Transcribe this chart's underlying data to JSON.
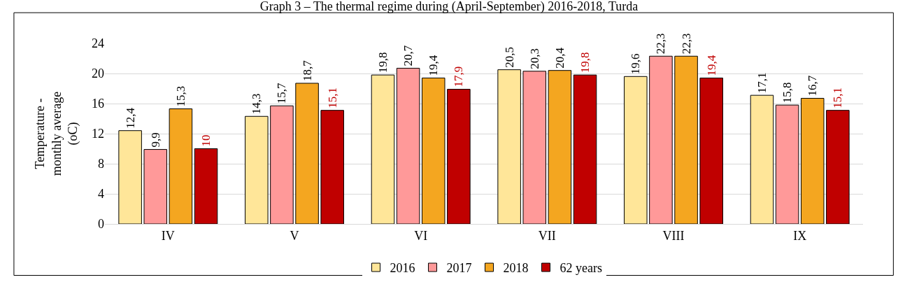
{
  "chart_data": {
    "type": "bar",
    "title": "Graph 3 – The thermal regime during (April-September) 2016-2018, Turda",
    "ylabel": "Temperature -\nmonthly average\n(oC)",
    "categories": [
      "IV",
      "V",
      "VI",
      "VII",
      "VIII",
      "IX"
    ],
    "series": [
      {
        "name": "2016",
        "color": "#ffe699",
        "values": [
          12.4,
          14.3,
          19.8,
          20.5,
          19.6,
          17.1
        ],
        "value_labels": [
          "12,4",
          "14,3",
          "19,8",
          "20,5",
          "19,6",
          "17,1"
        ]
      },
      {
        "name": "2017",
        "color": "#ff9999",
        "values": [
          9.9,
          15.7,
          20.7,
          20.3,
          22.3,
          15.8
        ],
        "value_labels": [
          "9,9",
          "15,7",
          "20,7",
          "20,3",
          "22,3",
          "15,8"
        ]
      },
      {
        "name": "2018",
        "color": "#f4a620",
        "values": [
          15.3,
          18.7,
          19.4,
          20.4,
          22.3,
          16.7
        ],
        "value_labels": [
          "15,3",
          "18,7",
          "19,4",
          "20,4",
          "22,3",
          "16,7"
        ]
      },
      {
        "name": "62 years",
        "color": "#c00000",
        "values": [
          10,
          15.1,
          17.9,
          19.8,
          19.4,
          15.1
        ],
        "value_labels": [
          "10",
          "15,1",
          "17,9",
          "19,8",
          "19,4",
          "15,1"
        ]
      }
    ],
    "ylim": [
      0,
      24
    ],
    "yticks": [
      0,
      4,
      8,
      12,
      16,
      20,
      24
    ],
    "grid": "y",
    "legend": "bottom"
  }
}
